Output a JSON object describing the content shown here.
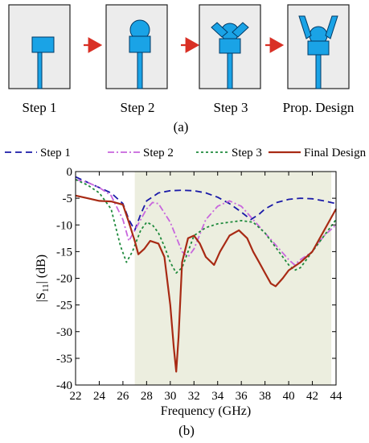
{
  "figure_a": {
    "steps": [
      "Step 1",
      "Step 2",
      "Step 3",
      "Prop. Design"
    ],
    "caption": "(a)",
    "colors": {
      "antenna": "#1aa3e6",
      "panel": "#ececec",
      "arrow": "#d93025"
    }
  },
  "chart_data": {
    "type": "line",
    "caption": "(b)",
    "xlabel": "Frequency (GHz)",
    "ylabel_main": "|S",
    "ylabel_sub": "11",
    "ylabel_tail": "| (dB)",
    "xlim": [
      22,
      44
    ],
    "ylim": [
      -40,
      0
    ],
    "xticks": [
      22,
      24,
      26,
      28,
      30,
      32,
      34,
      36,
      38,
      40,
      42,
      44
    ],
    "yticks": [
      0,
      -5,
      -10,
      -15,
      -20,
      -25,
      -30,
      -35,
      -40
    ],
    "shaded_band": {
      "from": 27,
      "to": 43.6,
      "color": "#eceedf"
    },
    "legend_position": "top",
    "series": [
      {
        "name": "Step 1",
        "color": "#1a1aa8",
        "dash": "8,5",
        "x": [
          22,
          23,
          24,
          25,
          26,
          26.5,
          27,
          27.5,
          28,
          29,
          30,
          31,
          32,
          33,
          34,
          35,
          36,
          36.8,
          37.5,
          38,
          39,
          40,
          41,
          42,
          43,
          44
        ],
        "y": [
          -1,
          -2,
          -3,
          -4,
          -6,
          -9,
          -11,
          -8,
          -5.5,
          -4,
          -3.6,
          -3.5,
          -3.6,
          -4,
          -4.8,
          -6,
          -7.6,
          -9,
          -8,
          -7,
          -5.8,
          -5.2,
          -5.0,
          -5.1,
          -5.5,
          -6
        ]
      },
      {
        "name": "Step 2",
        "color": "#c866dd",
        "dash": "8,3,2,3",
        "x": [
          22,
          23,
          24,
          25,
          26,
          26.5,
          27,
          28,
          28.5,
          29,
          30,
          31,
          31.5,
          32,
          33,
          34,
          35,
          36,
          37,
          38,
          39,
          40,
          40.5,
          41,
          42,
          43,
          44
        ],
        "y": [
          -1.5,
          -2,
          -3,
          -4.5,
          -9,
          -13,
          -11,
          -7,
          -5.8,
          -6,
          -9.5,
          -15,
          -16,
          -14.5,
          -9,
          -6.5,
          -5.5,
          -6.5,
          -9,
          -11.5,
          -14,
          -16.5,
          -17.5,
          -16.5,
          -15,
          -12,
          -10
        ]
      },
      {
        "name": "Step 3",
        "color": "#1e8a3c",
        "dash": "3,3",
        "x": [
          22,
          23,
          24,
          25,
          25.8,
          26.3,
          26.8,
          27.5,
          28,
          28.5,
          29,
          29.5,
          30,
          30.5,
          31,
          31.5,
          32,
          33,
          34,
          35,
          36,
          37,
          38,
          39,
          40,
          40.5,
          41,
          42,
          43,
          44
        ],
        "y": [
          -1.5,
          -2.5,
          -4,
          -7,
          -14,
          -17,
          -15,
          -11,
          -9.5,
          -10,
          -11.5,
          -14,
          -17,
          -19,
          -18,
          -15,
          -12,
          -10.5,
          -9.8,
          -9.5,
          -9.2,
          -9.5,
          -11.5,
          -14.5,
          -17.5,
          -18.5,
          -18,
          -15,
          -12,
          -9
        ]
      },
      {
        "name": "Final Design",
        "color": "#a82a14",
        "dash": "",
        "x": [
          22,
          23,
          24,
          25,
          26,
          26.5,
          27,
          27.3,
          27.8,
          28.3,
          29,
          29.5,
          30,
          30.3,
          30.5,
          30.7,
          31,
          31.5,
          32,
          32.5,
          33,
          33.7,
          34.2,
          35,
          35.8,
          36.5,
          37,
          37.5,
          38,
          38.5,
          38.9,
          39.5,
          40,
          41,
          42,
          43,
          44
        ],
        "y": [
          -4.5,
          -5,
          -5.5,
          -5.6,
          -6.2,
          -9.5,
          -13,
          -15.5,
          -14.5,
          -13,
          -13.5,
          -16,
          -25,
          -33,
          -37.5,
          -31,
          -17,
          -12.5,
          -12,
          -13.5,
          -16,
          -17.5,
          -15,
          -12,
          -11,
          -12.5,
          -15,
          -17,
          -19,
          -21,
          -21.5,
          -20,
          -18.5,
          -17,
          -15,
          -11,
          -7
        ]
      }
    ]
  }
}
